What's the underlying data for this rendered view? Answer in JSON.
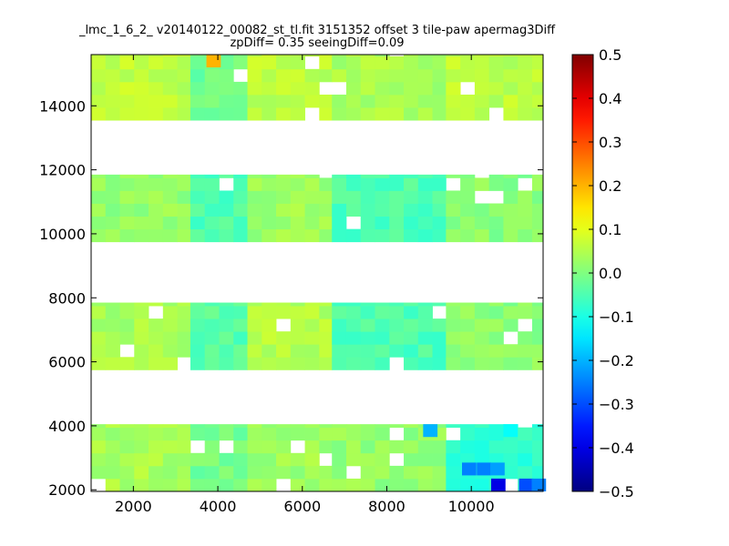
{
  "chart_data": {
    "type": "heatmap",
    "title": "_lmc_1_6_2_ v20140122_00082_st_tl.fit 3151352 offset 3 tile-paw apermag3Diff",
    "subtitle": "zpDiff= 0.35 seeingDiff=0.09",
    "xlabel": "",
    "ylabel": "",
    "xlim": [
      1000,
      11700
    ],
    "ylim": [
      1950,
      15600
    ],
    "x_ticks": [
      2000,
      4000,
      6000,
      8000,
      10000
    ],
    "y_ticks": [
      2000,
      4000,
      6000,
      8000,
      10000,
      12000,
      14000
    ],
    "x_tick_labels": [
      "2000",
      "4000",
      "6000",
      "8000",
      "10000"
    ],
    "y_tick_labels": [
      "2000",
      "4000",
      "6000",
      "8000",
      "10000",
      "12000",
      "14000"
    ],
    "cell_size": [
      340,
      400
    ],
    "colormap": "jet",
    "colorbar": {
      "range": [
        -0.5,
        0.5
      ],
      "ticks": [
        0.5,
        0.4,
        0.3,
        0.2,
        0.1,
        0.0,
        -0.1,
        -0.2,
        -0.3,
        -0.4,
        -0.5
      ],
      "tick_labels": [
        "0.5",
        "0.4",
        "0.3",
        "0.2",
        "0.1",
        "0.0",
        "−0.1",
        "−0.2",
        "−0.3",
        "−0.4",
        "−0.5"
      ]
    },
    "grid": false,
    "detector_columns_x": [
      1000,
      3350,
      4700,
      6700,
      9400,
      11700
    ],
    "detector_rows_y": [
      1950,
      4050,
      5750,
      7850,
      9750,
      11850,
      13550,
      15600
    ],
    "mean_value_by_block": {
      "columns": [
        "col1",
        "col2",
        "col3",
        "col4",
        "col5"
      ],
      "rows": [
        {
          "row": "row4 (13550-15600)",
          "values": [
            0.06,
            -0.02,
            0.06,
            0.04,
            0.06
          ]
        },
        {
          "row": "row3 (9750-11850)",
          "values": [
            0.02,
            -0.05,
            0.03,
            -0.05,
            0.01
          ]
        },
        {
          "row": "row2 (5750-7850)",
          "values": [
            0.04,
            -0.04,
            0.05,
            -0.05,
            0.01
          ]
        },
        {
          "row": "row1 (1950-4050)",
          "values": [
            0.04,
            -0.01,
            0.03,
            0.02,
            -0.08
          ]
        }
      ]
    },
    "notable_cells": [
      {
        "x": 3900,
        "y": 15400,
        "value": 0.2
      },
      {
        "x": 9030,
        "y": 3850,
        "value": -0.2
      },
      {
        "x": 10930,
        "y": 3850,
        "value": -0.12
      },
      {
        "x": 9950,
        "y": 2650,
        "value": -0.25
      },
      {
        "x": 10300,
        "y": 2650,
        "value": -0.25
      },
      {
        "x": 10620,
        "y": 2650,
        "value": -0.22
      },
      {
        "x": 10640,
        "y": 2150,
        "value": -0.4
      },
      {
        "x": 11300,
        "y": 2150,
        "value": -0.3
      },
      {
        "x": 11600,
        "y": 2150,
        "value": -0.25
      }
    ]
  }
}
